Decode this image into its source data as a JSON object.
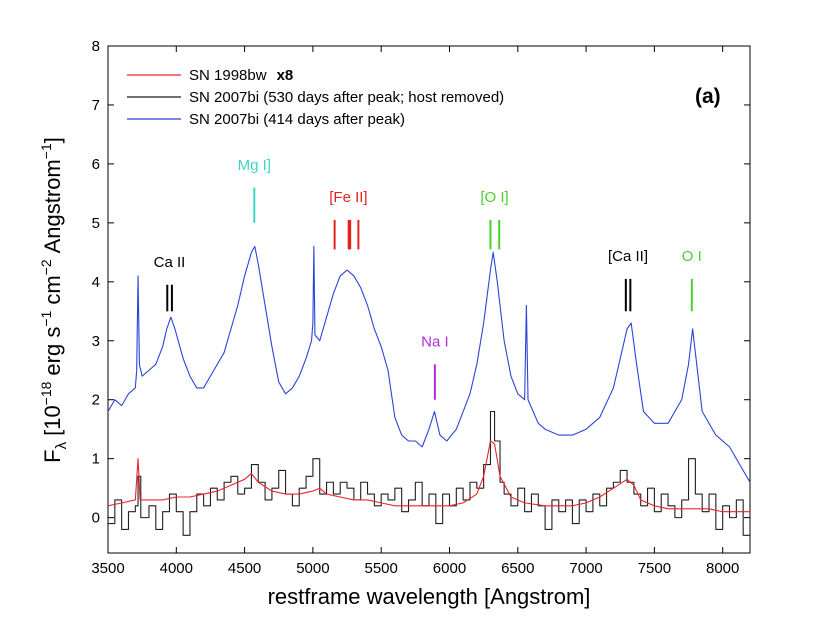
{
  "chart_data": {
    "type": "line",
    "panel_label": "(a)",
    "xlabel": "restframe wavelength [Angstrom]",
    "ylabel_parts": {
      "main": "F",
      "sub": "λ",
      "a": "[10",
      "a_sup": "−18",
      "b": "erg s",
      "b_sup": "−1",
      "c": "cm",
      "c_sup": "−2",
      "d": "Angstrom",
      "d_sup": "−1",
      "e": "]"
    },
    "xlim": [
      3500,
      8200
    ],
    "ylim": [
      -0.6,
      8
    ],
    "xticks": [
      3500,
      4000,
      4500,
      5000,
      5500,
      6000,
      6500,
      7000,
      7500,
      8000
    ],
    "yticks": [
      0,
      1,
      2,
      3,
      4,
      5,
      6,
      7,
      8
    ],
    "legend": {
      "position": "top-left",
      "entries": [
        {
          "label": "SN 1998bw",
          "bold_suffix": "x8",
          "color": "#e8262a"
        },
        {
          "label": "SN 2007bi (530 days after peak; host removed)",
          "bold_suffix": "",
          "color": "#1f1f1f"
        },
        {
          "label": "SN 2007bi (414 days after peak)",
          "bold_suffix": "",
          "color": "#2a45d6"
        }
      ]
    },
    "series": [
      {
        "name": "SN 2007bi (414 days after peak)",
        "color": "#2a45d6",
        "style": "line",
        "points": [
          [
            3500,
            1.8
          ],
          [
            3550,
            2.0
          ],
          [
            3600,
            1.9
          ],
          [
            3650,
            2.1
          ],
          [
            3700,
            2.2
          ],
          [
            3710,
            2.5
          ],
          [
            3720,
            4.1
          ],
          [
            3730,
            2.6
          ],
          [
            3750,
            2.4
          ],
          [
            3800,
            2.5
          ],
          [
            3850,
            2.6
          ],
          [
            3900,
            2.9
          ],
          [
            3930,
            3.2
          ],
          [
            3960,
            3.4
          ],
          [
            3990,
            3.2
          ],
          [
            4050,
            2.7
          ],
          [
            4100,
            2.4
          ],
          [
            4150,
            2.2
          ],
          [
            4200,
            2.2
          ],
          [
            4250,
            2.4
          ],
          [
            4300,
            2.6
          ],
          [
            4350,
            2.8
          ],
          [
            4400,
            3.2
          ],
          [
            4450,
            3.6
          ],
          [
            4500,
            4.1
          ],
          [
            4550,
            4.5
          ],
          [
            4575,
            4.6
          ],
          [
            4600,
            4.3
          ],
          [
            4650,
            3.6
          ],
          [
            4700,
            2.9
          ],
          [
            4750,
            2.3
          ],
          [
            4800,
            2.1
          ],
          [
            4850,
            2.2
          ],
          [
            4900,
            2.4
          ],
          [
            4950,
            2.7
          ],
          [
            4990,
            3.0
          ],
          [
            5000,
            3.3
          ],
          [
            5007,
            4.6
          ],
          [
            5015,
            3.1
          ],
          [
            5050,
            3.0
          ],
          [
            5100,
            3.4
          ],
          [
            5150,
            3.8
          ],
          [
            5200,
            4.1
          ],
          [
            5250,
            4.2
          ],
          [
            5300,
            4.1
          ],
          [
            5350,
            3.9
          ],
          [
            5400,
            3.6
          ],
          [
            5450,
            3.2
          ],
          [
            5500,
            2.9
          ],
          [
            5550,
            2.5
          ],
          [
            5600,
            1.7
          ],
          [
            5650,
            1.4
          ],
          [
            5700,
            1.3
          ],
          [
            5750,
            1.3
          ],
          [
            5800,
            1.2
          ],
          [
            5850,
            1.5
          ],
          [
            5890,
            1.8
          ],
          [
            5930,
            1.4
          ],
          [
            5980,
            1.3
          ],
          [
            6050,
            1.5
          ],
          [
            6100,
            1.8
          ],
          [
            6150,
            2.1
          ],
          [
            6200,
            2.6
          ],
          [
            6250,
            3.3
          ],
          [
            6300,
            4.2
          ],
          [
            6320,
            4.5
          ],
          [
            6350,
            4.0
          ],
          [
            6400,
            3.0
          ],
          [
            6450,
            2.4
          ],
          [
            6500,
            2.1
          ],
          [
            6550,
            2.0
          ],
          [
            6563,
            3.6
          ],
          [
            6575,
            2.0
          ],
          [
            6650,
            1.6
          ],
          [
            6700,
            1.5
          ],
          [
            6800,
            1.4
          ],
          [
            6900,
            1.4
          ],
          [
            7000,
            1.5
          ],
          [
            7100,
            1.7
          ],
          [
            7200,
            2.2
          ],
          [
            7250,
            2.7
          ],
          [
            7300,
            3.2
          ],
          [
            7330,
            3.3
          ],
          [
            7370,
            2.6
          ],
          [
            7420,
            1.8
          ],
          [
            7500,
            1.6
          ],
          [
            7600,
            1.6
          ],
          [
            7700,
            2.0
          ],
          [
            7750,
            2.6
          ],
          [
            7780,
            3.2
          ],
          [
            7800,
            2.8
          ],
          [
            7850,
            1.8
          ],
          [
            7950,
            1.4
          ],
          [
            8050,
            1.2
          ],
          [
            8150,
            0.8
          ],
          [
            8200,
            0.6
          ]
        ]
      },
      {
        "name": "SN 2007bi (530 days after peak; host removed)",
        "color": "#1f1f1f",
        "style": "step",
        "points": [
          [
            3500,
            -0.1
          ],
          [
            3550,
            0.3
          ],
          [
            3600,
            -0.2
          ],
          [
            3650,
            0.1
          ],
          [
            3700,
            0.2
          ],
          [
            3720,
            0.7
          ],
          [
            3740,
            0.0
          ],
          [
            3800,
            0.2
          ],
          [
            3850,
            -0.2
          ],
          [
            3900,
            0.1
          ],
          [
            3950,
            0.4
          ],
          [
            4000,
            0.1
          ],
          [
            4050,
            -0.3
          ],
          [
            4100,
            0.1
          ],
          [
            4150,
            0.4
          ],
          [
            4200,
            0.2
          ],
          [
            4250,
            0.5
          ],
          [
            4300,
            0.3
          ],
          [
            4350,
            0.6
          ],
          [
            4400,
            0.7
          ],
          [
            4450,
            0.4
          ],
          [
            4500,
            0.5
          ],
          [
            4550,
            0.9
          ],
          [
            4600,
            0.6
          ],
          [
            4650,
            0.3
          ],
          [
            4700,
            0.5
          ],
          [
            4750,
            0.8
          ],
          [
            4800,
            0.4
          ],
          [
            4850,
            0.2
          ],
          [
            4900,
            0.5
          ],
          [
            4950,
            0.7
          ],
          [
            5000,
            1.0
          ],
          [
            5050,
            0.4
          ],
          [
            5100,
            0.6
          ],
          [
            5150,
            0.4
          ],
          [
            5200,
            0.6
          ],
          [
            5250,
            0.5
          ],
          [
            5300,
            0.3
          ],
          [
            5350,
            0.6
          ],
          [
            5400,
            0.4
          ],
          [
            5450,
            0.2
          ],
          [
            5500,
            0.4
          ],
          [
            5550,
            0.3
          ],
          [
            5600,
            0.5
          ],
          [
            5650,
            0.1
          ],
          [
            5700,
            0.3
          ],
          [
            5750,
            0.6
          ],
          [
            5800,
            0.2
          ],
          [
            5850,
            0.4
          ],
          [
            5900,
            -0.1
          ],
          [
            5950,
            0.4
          ],
          [
            6000,
            0.2
          ],
          [
            6050,
            0.5
          ],
          [
            6100,
            0.3
          ],
          [
            6150,
            0.6
          ],
          [
            6200,
            0.5
          ],
          [
            6250,
            0.9
          ],
          [
            6300,
            1.8
          ],
          [
            6330,
            1.3
          ],
          [
            6370,
            0.6
          ],
          [
            6400,
            0.4
          ],
          [
            6450,
            0.2
          ],
          [
            6500,
            0.5
          ],
          [
            6550,
            0.1
          ],
          [
            6600,
            0.4
          ],
          [
            6650,
            0.2
          ],
          [
            6700,
            -0.2
          ],
          [
            6750,
            0.3
          ],
          [
            6800,
            0.1
          ],
          [
            6850,
            0.3
          ],
          [
            6900,
            -0.1
          ],
          [
            6950,
            0.3
          ],
          [
            7000,
            0.1
          ],
          [
            7050,
            0.4
          ],
          [
            7100,
            0.2
          ],
          [
            7150,
            0.5
          ],
          [
            7200,
            0.6
          ],
          [
            7250,
            0.8
          ],
          [
            7300,
            0.6
          ],
          [
            7350,
            0.4
          ],
          [
            7400,
            0.2
          ],
          [
            7450,
            0.5
          ],
          [
            7500,
            0.1
          ],
          [
            7550,
            0.4
          ],
          [
            7600,
            0.2
          ],
          [
            7650,
            0.0
          ],
          [
            7700,
            0.3
          ],
          [
            7750,
            1.0
          ],
          [
            7800,
            0.4
          ],
          [
            7850,
            0.1
          ],
          [
            7900,
            0.4
          ],
          [
            7950,
            -0.2
          ],
          [
            8000,
            0.2
          ],
          [
            8050,
            0.0
          ],
          [
            8100,
            0.3
          ],
          [
            8150,
            -0.3
          ],
          [
            8200,
            0.1
          ]
        ]
      },
      {
        "name": "SN 1998bw x8",
        "color": "#e8262a",
        "style": "line",
        "points": [
          [
            3500,
            0.2
          ],
          [
            3600,
            0.25
          ],
          [
            3700,
            0.3
          ],
          [
            3720,
            1.0
          ],
          [
            3735,
            0.3
          ],
          [
            3800,
            0.3
          ],
          [
            3900,
            0.3
          ],
          [
            4000,
            0.35
          ],
          [
            4100,
            0.35
          ],
          [
            4200,
            0.4
          ],
          [
            4300,
            0.45
          ],
          [
            4400,
            0.55
          ],
          [
            4500,
            0.65
          ],
          [
            4550,
            0.75
          ],
          [
            4600,
            0.6
          ],
          [
            4700,
            0.45
          ],
          [
            4800,
            0.4
          ],
          [
            4900,
            0.4
          ],
          [
            5000,
            0.45
          ],
          [
            5050,
            0.5
          ],
          [
            5100,
            0.4
          ],
          [
            5200,
            0.35
          ],
          [
            5300,
            0.3
          ],
          [
            5400,
            0.3
          ],
          [
            5500,
            0.25
          ],
          [
            5600,
            0.2
          ],
          [
            5700,
            0.2
          ],
          [
            5800,
            0.2
          ],
          [
            5900,
            0.2
          ],
          [
            6000,
            0.2
          ],
          [
            6100,
            0.25
          ],
          [
            6200,
            0.4
          ],
          [
            6250,
            0.7
          ],
          [
            6300,
            1.3
          ],
          [
            6330,
            1.25
          ],
          [
            6370,
            0.7
          ],
          [
            6450,
            0.35
          ],
          [
            6550,
            0.25
          ],
          [
            6700,
            0.2
          ],
          [
            6900,
            0.2
          ],
          [
            7000,
            0.25
          ],
          [
            7100,
            0.35
          ],
          [
            7200,
            0.5
          ],
          [
            7300,
            0.65
          ],
          [
            7350,
            0.55
          ],
          [
            7400,
            0.3
          ],
          [
            7500,
            0.2
          ],
          [
            7600,
            0.15
          ],
          [
            7700,
            0.15
          ],
          [
            7800,
            0.15
          ],
          [
            7900,
            0.15
          ],
          [
            8000,
            0.1
          ],
          [
            8100,
            0.1
          ],
          [
            8200,
            0.1
          ]
        ]
      }
    ],
    "annotations": [
      {
        "label": "Ca II",
        "color": "#000000",
        "x": 3950,
        "label_y": 4.25,
        "line_top": 3.95,
        "line_bottom": 3.5,
        "lines": [
          3934,
          3968
        ]
      },
      {
        "label": "Mg I]",
        "color": "#3dd5c5",
        "x": 4571,
        "label_y": 5.9,
        "line_top": 5.6,
        "line_bottom": 5.0,
        "lines": [
          4571
        ]
      },
      {
        "label": "[Fe II]",
        "color": "#e3231f",
        "x": 5260,
        "label_y": 5.35,
        "line_top": 5.05,
        "line_bottom": 4.55,
        "lines": [
          5159,
          5262,
          5273,
          5333
        ]
      },
      {
        "label": "Na I",
        "color": "#b12ed6",
        "x": 5893,
        "label_y": 2.9,
        "line_top": 2.6,
        "line_bottom": 2.0,
        "lines": [
          5893
        ]
      },
      {
        "label": "[O I]",
        "color": "#4ad12b",
        "x": 6330,
        "label_y": 5.35,
        "line_top": 5.05,
        "line_bottom": 4.55,
        "lines": [
          6300,
          6364
        ]
      },
      {
        "label": "[Ca II]",
        "color": "#000000",
        "x": 7307,
        "label_y": 4.35,
        "line_top": 4.05,
        "line_bottom": 3.5,
        "lines": [
          7291,
          7324
        ]
      },
      {
        "label": "O I",
        "color": "#4ad12b",
        "x": 7774,
        "label_y": 4.35,
        "line_top": 4.05,
        "line_bottom": 3.5,
        "lines": [
          7774
        ]
      }
    ]
  }
}
